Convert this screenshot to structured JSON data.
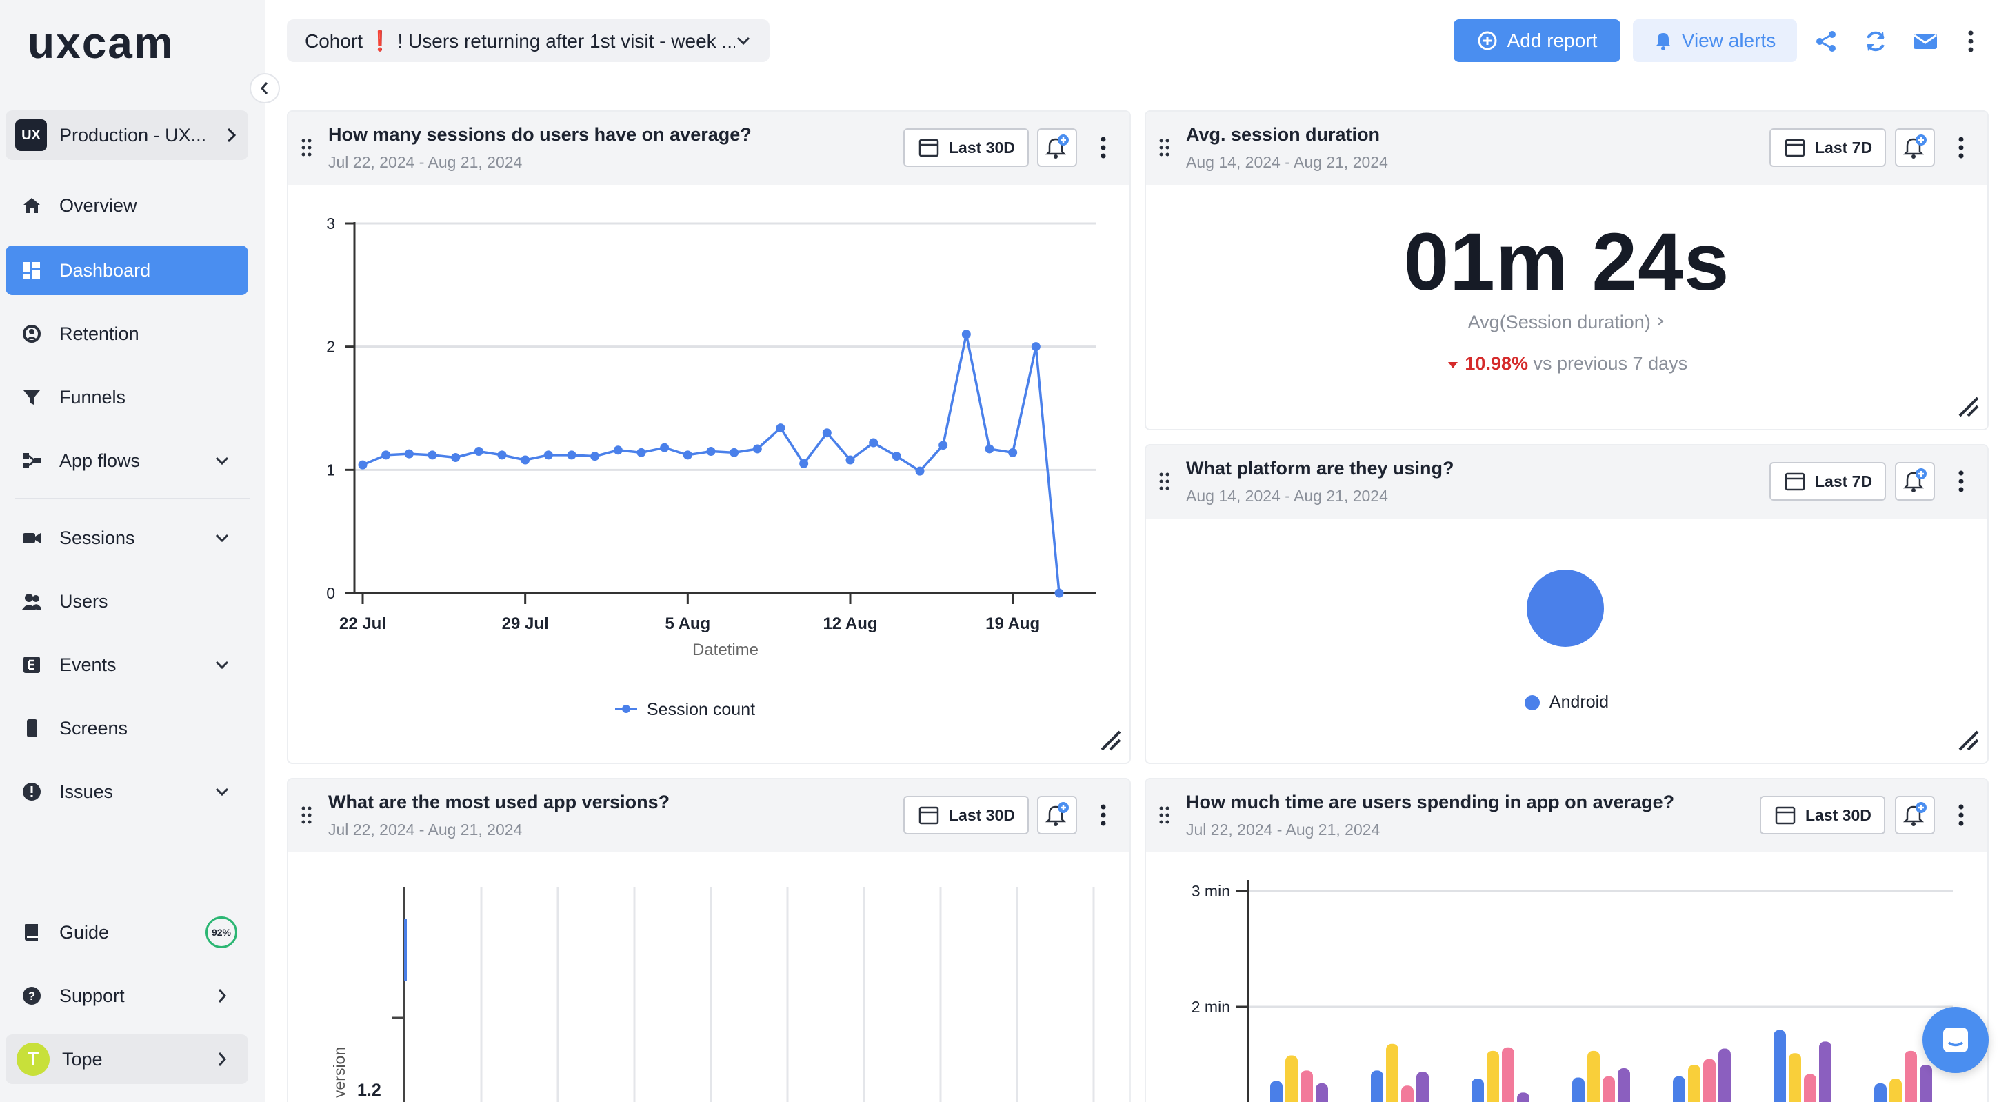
{
  "brand": {
    "logo_text": "uxcam",
    "accent": "#4a8ef0"
  },
  "sidebar": {
    "project": {
      "badge": "UX",
      "label": "Production - UX..."
    },
    "items": [
      {
        "label": "Overview",
        "icon": "home-icon"
      },
      {
        "label": "Dashboard",
        "icon": "dashboard-icon",
        "active": true
      },
      {
        "label": "Retention",
        "icon": "retention-icon"
      },
      {
        "label": "Funnels",
        "icon": "funnel-icon"
      },
      {
        "label": "App flows",
        "icon": "flows-icon"
      },
      {
        "label": "Sessions",
        "icon": "camera-icon"
      },
      {
        "label": "Users",
        "icon": "users-icon"
      },
      {
        "label": "Events",
        "icon": "events-icon"
      },
      {
        "label": "Screens",
        "icon": "phone-icon"
      },
      {
        "label": "Issues",
        "icon": "alert-icon"
      }
    ],
    "guide": {
      "label": "Guide",
      "progress": "92%"
    },
    "support": {
      "label": "Support"
    },
    "user": {
      "initial": "T",
      "name": "Tope"
    }
  },
  "topbar": {
    "cohort_prefix": "Cohort",
    "cohort_bang": "❗",
    "cohort_name": "! Users returning after 1st visit - week ...",
    "add_report": "Add report",
    "view_alerts": "View alerts"
  },
  "cards": {
    "sessions": {
      "title": "How many sessions do users have on average?",
      "date": "Jul 22, 2024 - Aug 21, 2024",
      "range": "Last 30D"
    },
    "duration": {
      "title": "Avg. session duration",
      "date": "Aug 14, 2024 - Aug 21, 2024",
      "range": "Last 7D",
      "value": "01m 24s",
      "label": "Avg(Session duration)",
      "change": "10.98%",
      "compare": "vs previous 7 days"
    },
    "platform": {
      "title": "What platform are they using?",
      "date": "Aug 14, 2024 - Aug 21, 2024",
      "range": "Last 7D",
      "legend": "Android"
    },
    "versions": {
      "title": "What are the most used app versions?",
      "date": "Jul 22, 2024 - Aug 21, 2024",
      "range": "Last 30D",
      "tick": "1.2",
      "axis_label": "version"
    },
    "time_in_app": {
      "title": "How much time are users spending in app on average?",
      "date": "Jul 22, 2024 - Aug 21, 2024",
      "range": "Last 30D",
      "ticks": [
        "3 min",
        "2 min"
      ]
    }
  },
  "chart_data": [
    {
      "type": "line",
      "title": "How many sessions do users have on average?",
      "xlabel": "Datetime",
      "ylabel": "",
      "ylim": [
        0,
        3
      ],
      "yticks": [
        0,
        1,
        2,
        3
      ],
      "xticks": [
        "22 Jul",
        "29 Jul",
        "5 Aug",
        "12 Aug",
        "19 Aug"
      ],
      "legend": "Session count",
      "color": "#4a80ea",
      "series": [
        {
          "name": "Session count",
          "values": [
            1.04,
            1.12,
            1.13,
            1.12,
            1.1,
            1.15,
            1.12,
            1.08,
            1.12,
            1.12,
            1.11,
            1.16,
            1.14,
            1.18,
            1.12,
            1.15,
            1.14,
            1.17,
            1.34,
            1.05,
            1.3,
            1.08,
            1.22,
            1.11,
            0.99,
            1.2,
            2.1,
            1.17,
            1.14,
            2.0,
            0.0
          ]
        }
      ]
    },
    {
      "type": "bar",
      "title": "How much time are users spending in app on average?",
      "yticks": [
        "3 min",
        "2 min"
      ],
      "ylim_minutes": [
        0,
        3
      ],
      "series": [
        {
          "name": "s1",
          "color": "#4a7fe8",
          "values": [
            1.36,
            1.45,
            1.38,
            1.39,
            1.4,
            1.8,
            1.34
          ]
        },
        {
          "name": "s2",
          "color": "#f9cf3a",
          "values": [
            1.58,
            1.68,
            1.62,
            1.62,
            1.5,
            1.6,
            1.38
          ]
        },
        {
          "name": "s3",
          "color": "#f27a9a",
          "values": [
            1.45,
            1.32,
            1.65,
            1.4,
            1.55,
            1.42,
            1.62
          ]
        },
        {
          "name": "s4",
          "color": "#8b5fbf",
          "values": [
            1.34,
            1.44,
            1.26,
            1.47,
            1.64,
            1.7,
            1.5
          ]
        }
      ]
    }
  ]
}
